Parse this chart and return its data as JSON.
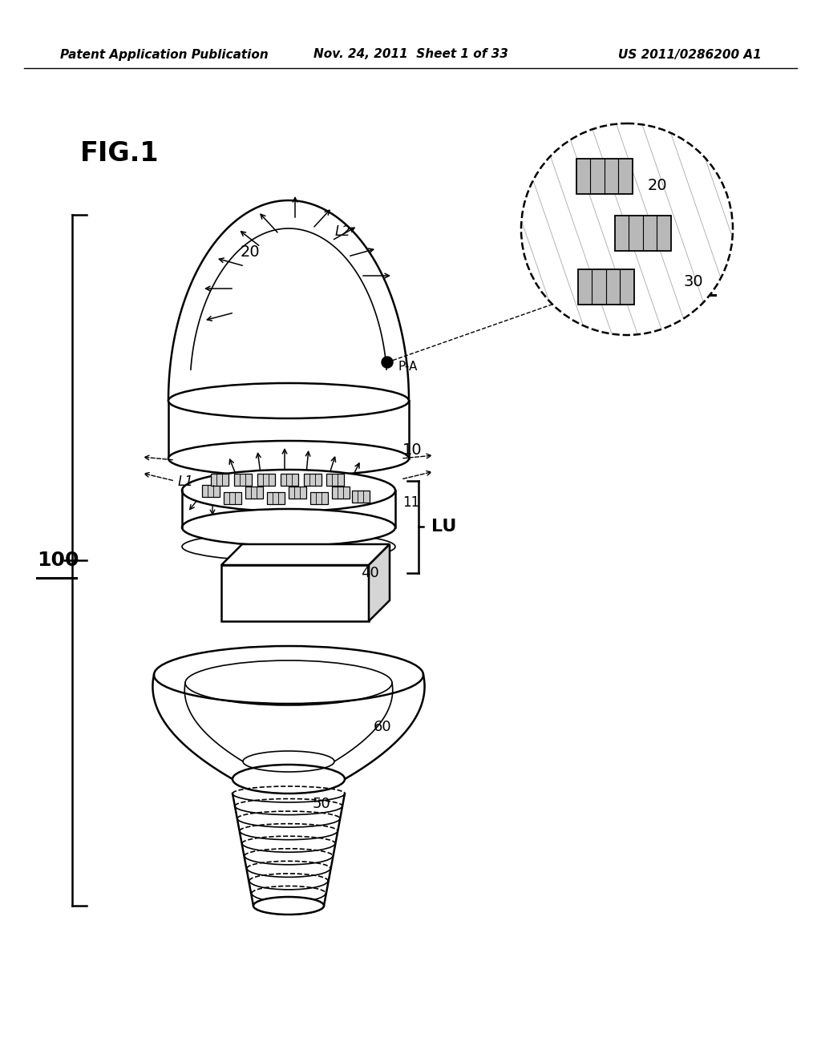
{
  "header_left": "Patent Application Publication",
  "header_center": "Nov. 24, 2011  Sheet 1 of 33",
  "header_right": "US 2011/0286200 A1",
  "fig_label": "FIG.1",
  "background_color": "#ffffff",
  "line_color": "#000000"
}
